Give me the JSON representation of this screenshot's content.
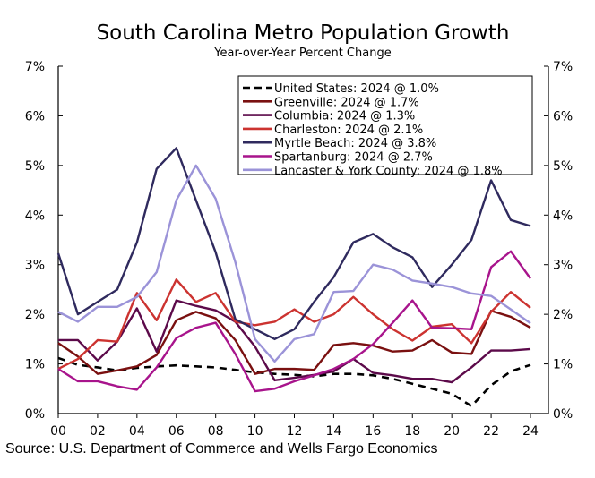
{
  "chart_data": {
    "type": "line",
    "title": "South Carolina Metro Population Growth",
    "subtitle": "Year-over-Year Percent Change",
    "xlabel": "",
    "ylabel": "",
    "ylim": [
      0,
      7
    ],
    "y_ticks": [
      "0%",
      "1%",
      "2%",
      "3%",
      "4%",
      "5%",
      "6%",
      "7%"
    ],
    "x": [
      2000,
      2001,
      2002,
      2003,
      2004,
      2005,
      2006,
      2007,
      2008,
      2009,
      2010,
      2011,
      2012,
      2013,
      2014,
      2015,
      2016,
      2017,
      2018,
      2019,
      2020,
      2021,
      2022,
      2023,
      2024
    ],
    "x_tick_labels": [
      "00",
      "02",
      "04",
      "06",
      "08",
      "10",
      "12",
      "14",
      "16",
      "18",
      "20",
      "22",
      "24"
    ],
    "legend_position": "top-right",
    "series": [
      {
        "name": "United States: 2024 @ 1.0%",
        "color": "#000000",
        "dashed": true,
        "values": [
          1.12,
          0.98,
          0.93,
          0.87,
          0.92,
          0.95,
          0.97,
          0.95,
          0.93,
          0.88,
          0.83,
          0.8,
          0.78,
          0.75,
          0.8,
          0.8,
          0.77,
          0.7,
          0.6,
          0.5,
          0.4,
          0.15,
          0.57,
          0.85,
          0.98
        ]
      },
      {
        "name": "Greenville: 2024 @ 1.7%",
        "color": "#7a1010",
        "values": [
          1.42,
          1.15,
          0.8,
          0.87,
          0.95,
          1.18,
          1.88,
          2.05,
          1.92,
          1.48,
          0.8,
          0.9,
          0.9,
          0.88,
          1.38,
          1.42,
          1.37,
          1.25,
          1.27,
          1.48,
          1.23,
          1.2,
          2.07,
          1.95,
          1.73
        ]
      },
      {
        "name": "Columbia: 2024 @ 1.3%",
        "color": "#5c0a4a",
        "values": [
          1.48,
          1.48,
          1.07,
          1.45,
          2.12,
          1.25,
          2.28,
          2.17,
          2.08,
          1.85,
          1.35,
          0.67,
          0.72,
          0.78,
          0.85,
          1.1,
          0.82,
          0.77,
          0.7,
          0.7,
          0.63,
          0.93,
          1.27,
          1.27,
          1.3
        ]
      },
      {
        "name": "Charleston: 2024 @ 2.1%",
        "color": "#cc3330",
        "values": [
          0.9,
          1.1,
          1.48,
          1.45,
          2.43,
          1.88,
          2.7,
          2.25,
          2.43,
          1.85,
          1.78,
          1.85,
          2.1,
          1.85,
          2.0,
          2.35,
          2.0,
          1.7,
          1.47,
          1.75,
          1.8,
          1.42,
          2.05,
          2.45,
          2.13
        ]
      },
      {
        "name": "Myrtle Beach: 2024 @ 3.8%",
        "color": "#2f2a5e",
        "values": [
          3.23,
          2.0,
          2.25,
          2.5,
          3.45,
          4.93,
          5.35,
          4.3,
          3.25,
          1.9,
          1.7,
          1.5,
          1.7,
          2.25,
          2.75,
          3.45,
          3.62,
          3.35,
          3.15,
          2.55,
          3.0,
          3.5,
          4.7,
          3.9,
          3.78
        ]
      },
      {
        "name": "Spartanburg: 2024 @ 2.7%",
        "color": "#a8148c",
        "values": [
          0.9,
          0.65,
          0.65,
          0.55,
          0.48,
          0.93,
          1.52,
          1.73,
          1.83,
          1.2,
          0.45,
          0.5,
          0.65,
          0.77,
          0.9,
          1.1,
          1.4,
          1.83,
          2.28,
          1.73,
          1.72,
          1.7,
          2.95,
          3.27,
          2.72
        ]
      },
      {
        "name": "Lancaster & York County: 2024 @ 1.8%",
        "color": "#9b93d8",
        "values": [
          2.05,
          1.85,
          2.15,
          2.15,
          2.35,
          2.85,
          4.3,
          5.0,
          4.33,
          3.05,
          1.5,
          1.05,
          1.5,
          1.6,
          2.45,
          2.47,
          3.0,
          2.9,
          2.68,
          2.62,
          2.55,
          2.42,
          2.37,
          2.1,
          1.82
        ]
      }
    ],
    "source": "Source: U.S. Department of Commerce and Wells Fargo Economics"
  }
}
